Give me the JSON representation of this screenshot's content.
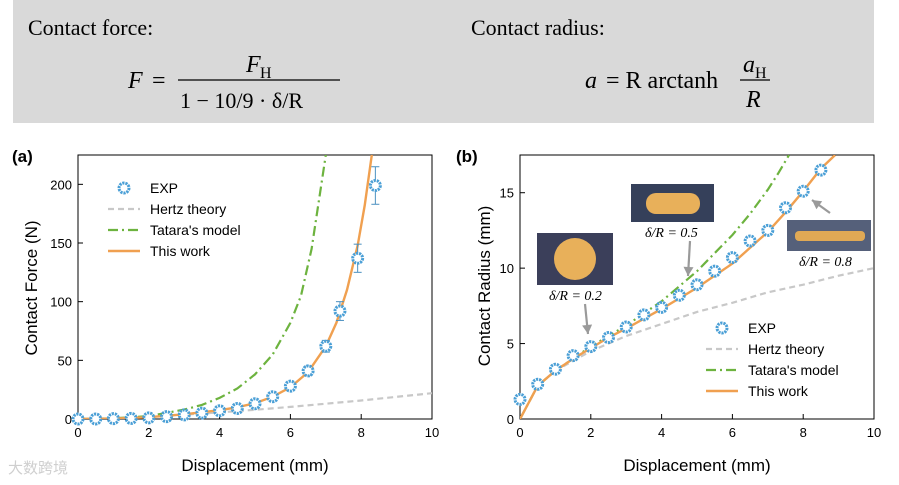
{
  "header": {
    "force_title": "Contact force:",
    "radius_title": "Contact radius:",
    "force_eq": {
      "lhs": "F",
      "eq": "=",
      "num": "F",
      "num_sub": "H",
      "den": "1 − 10/9 · δ/R"
    },
    "radius_eq": {
      "lhs": "a",
      "rest": "= R arctanh",
      "num": "a",
      "num_sub": "H",
      "den": "R"
    }
  },
  "watermark": "大数跨境",
  "colors": {
    "exp": "#4a9fd6",
    "hertz": "#c8c8c8",
    "tatara": "#6db33f",
    "thiswork": "#f0a050"
  },
  "chart_data": [
    {
      "type": "line",
      "panel_label": "(a)",
      "xlabel": "Displacement (mm)",
      "ylabel": "Contact Force (N)",
      "xlim": [
        0,
        10
      ],
      "ylim": [
        0,
        225
      ],
      "xticks": [
        "0",
        "2",
        "4",
        "6",
        "8",
        "10"
      ],
      "yticks": [
        "0",
        "50",
        "100",
        "150",
        "200"
      ],
      "legend_position": "top-left",
      "series": [
        {
          "name": "EXP",
          "kind": "markers",
          "x": [
            0,
            0.5,
            1,
            1.5,
            2,
            2.5,
            3,
            3.5,
            4,
            4.5,
            5,
            5.5,
            6,
            6.5,
            7,
            7.4,
            7.9,
            8.4
          ],
          "y": [
            0,
            0,
            0.3,
            0.5,
            1,
            2,
            3.5,
            5,
            7,
            9,
            13,
            19,
            28,
            41,
            62,
            92,
            137,
            199
          ],
          "err": [
            0.5,
            0.5,
            0.5,
            0.5,
            0.8,
            1,
            1.2,
            1.5,
            2,
            2,
            2.5,
            3,
            3,
            4,
            5,
            8,
            12,
            16
          ]
        },
        {
          "name": "Hertz theory",
          "kind": "dashed",
          "x": [
            0,
            1,
            2,
            3,
            4,
            5,
            6,
            7,
            8,
            9,
            10
          ],
          "y": [
            0,
            0.7,
            2,
            3.7,
            5.6,
            7.8,
            10.3,
            13,
            15.8,
            18.9,
            22
          ]
        },
        {
          "name": "Tatara's model",
          "kind": "dashdot",
          "x": [
            0,
            1,
            2,
            3,
            3.5,
            4,
            4.5,
            5,
            5.5,
            6,
            6.3,
            6.6,
            6.8,
            7.0
          ],
          "y": [
            0,
            0.5,
            2.5,
            8,
            12,
            18,
            26,
            38,
            55,
            82,
            105,
            145,
            185,
            225
          ]
        },
        {
          "name": "This work",
          "kind": "solid",
          "x": [
            0,
            1,
            2,
            3,
            4,
            4.5,
            5,
            5.5,
            6,
            6.5,
            7,
            7.3,
            7.6,
            7.9,
            8.1,
            8.3
          ],
          "y": [
            0,
            0.3,
            1.5,
            4,
            7.5,
            10,
            13.5,
            19,
            27,
            40,
            62,
            82,
            110,
            148,
            182,
            225
          ]
        }
      ]
    },
    {
      "type": "line",
      "panel_label": "(b)",
      "xlabel": "Displacement (mm)",
      "ylabel": "Contact Radius (mm)",
      "xlim": [
        0,
        10
      ],
      "ylim": [
        0,
        17.5
      ],
      "xticks": [
        "0",
        "2",
        "4",
        "6",
        "8",
        "10"
      ],
      "yticks": [
        "0",
        "5",
        "10",
        "15"
      ],
      "legend_position": "bottom-right",
      "annotations": [
        {
          "text": "δ/R = 0.2",
          "x": 1.9,
          "y": 5.3
        },
        {
          "text": "δ/R = 0.5",
          "x": 4.9,
          "y": 8.9
        },
        {
          "text": "δ/R = 0.8",
          "x": 8.2,
          "y": 15.5
        }
      ],
      "series": [
        {
          "name": "EXP",
          "kind": "markers",
          "x": [
            0,
            0.5,
            1,
            1.5,
            2,
            2.5,
            3,
            3.5,
            4,
            4.5,
            5,
            5.5,
            6,
            6.5,
            7,
            7.5,
            8,
            8.5
          ],
          "y": [
            1.3,
            2.3,
            3.3,
            4.2,
            4.8,
            5.4,
            6.1,
            6.9,
            7.4,
            8.2,
            8.9,
            9.8,
            10.7,
            11.8,
            12.5,
            14.0,
            15.1,
            16.5
          ]
        },
        {
          "name": "Hertz theory",
          "kind": "dashed",
          "x": [
            0,
            0.5,
            1,
            2,
            3,
            4,
            5,
            6,
            7,
            8,
            9,
            10
          ],
          "y": [
            0,
            2.2,
            3.2,
            4.5,
            5.5,
            6.3,
            7.1,
            7.7,
            8.4,
            8.9,
            9.5,
            10.0
          ]
        },
        {
          "name": "Tatara's model",
          "kind": "dashdot",
          "x": [
            0,
            0.5,
            1,
            2,
            3,
            4,
            5,
            6,
            6.5,
            7,
            7.3,
            7.6
          ],
          "y": [
            0,
            2.2,
            3.2,
            4.8,
            6.2,
            7.8,
            9.8,
            12.2,
            13.6,
            15.2,
            16.3,
            17.5
          ]
        },
        {
          "name": "This work",
          "kind": "solid",
          "x": [
            0,
            0.5,
            1,
            1.5,
            2,
            2.5,
            3,
            4,
            5,
            6,
            7,
            7.5,
            8,
            8.5,
            8.9
          ],
          "y": [
            0,
            2.2,
            3.2,
            4.0,
            4.7,
            5.4,
            6.0,
            7.3,
            8.7,
            10.3,
            12.4,
            13.7,
            15.1,
            16.6,
            17.5
          ]
        }
      ]
    }
  ]
}
